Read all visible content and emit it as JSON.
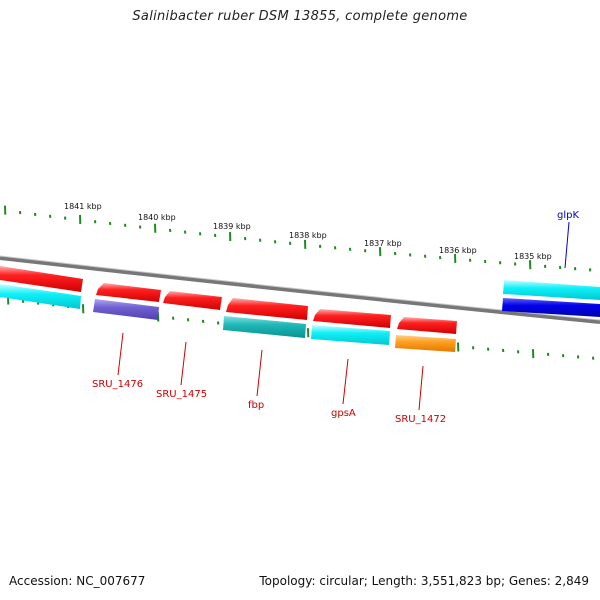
{
  "title": "Salinibacter ruber DSM 13855, complete genome",
  "footer": {
    "accession": "Accession: NC_007677",
    "info": "Topology: circular; Length: 3,551,823 bp; Genes: 2,849"
  },
  "scale_labels": [
    "1841 kbp",
    "1840 kbp",
    "1839 kbp",
    "1838 kbp",
    "1837 kbp",
    "1836 kbp",
    "1835 kbp"
  ],
  "gene_labels": [
    {
      "name": "SRU_1476",
      "color": "#cc0000"
    },
    {
      "name": "SRU_1475",
      "color": "#cc0000"
    },
    {
      "name": "fbp",
      "color": "#cc0000"
    },
    {
      "name": "gpsA",
      "color": "#cc0000"
    },
    {
      "name": "SRU_1472",
      "color": "#cc0000"
    },
    {
      "name": "glpK",
      "color": "#0000cc"
    }
  ],
  "colors": {
    "cds": "#ee1111",
    "cds_light": "#ff8080",
    "cyan": "#00e0e8",
    "cyan_light": "#a0ffff",
    "teal": "#10b0b0",
    "purple": "#7060d0",
    "orange": "#ff9a10",
    "blue": "#0000dd",
    "tick": "#1f8a1f",
    "backbone": "#808080"
  }
}
